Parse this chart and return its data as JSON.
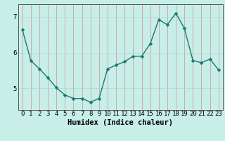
{
  "x": [
    0,
    1,
    2,
    3,
    4,
    5,
    6,
    7,
    8,
    9,
    10,
    11,
    12,
    13,
    14,
    15,
    16,
    17,
    18,
    19,
    20,
    21,
    22,
    23
  ],
  "y": [
    6.65,
    5.78,
    5.55,
    5.3,
    5.02,
    4.82,
    4.72,
    4.72,
    4.62,
    4.72,
    5.55,
    5.65,
    5.75,
    5.9,
    5.9,
    6.25,
    6.92,
    6.78,
    7.1,
    6.68,
    5.78,
    5.72,
    5.82,
    5.52
  ],
  "xlabel": "Humidex (Indice chaleur)",
  "yticks": [
    5,
    6,
    7
  ],
  "xticks": [
    0,
    1,
    2,
    3,
    4,
    5,
    6,
    7,
    8,
    9,
    10,
    11,
    12,
    13,
    14,
    15,
    16,
    17,
    18,
    19,
    20,
    21,
    22,
    23
  ],
  "xlim": [
    -0.5,
    23.5
  ],
  "ylim": [
    4.4,
    7.35
  ],
  "line_color": "#1a7a6e",
  "marker_color": "#1a7a6e",
  "bg_color": "#c8eee8",
  "vgrid_color": "#d09090",
  "hgrid_color": "#b0d8d0",
  "border_color": "#555555",
  "xlabel_fontsize": 7.5,
  "tick_fontsize": 6.5,
  "line_width": 1.0,
  "marker_size": 2.5
}
